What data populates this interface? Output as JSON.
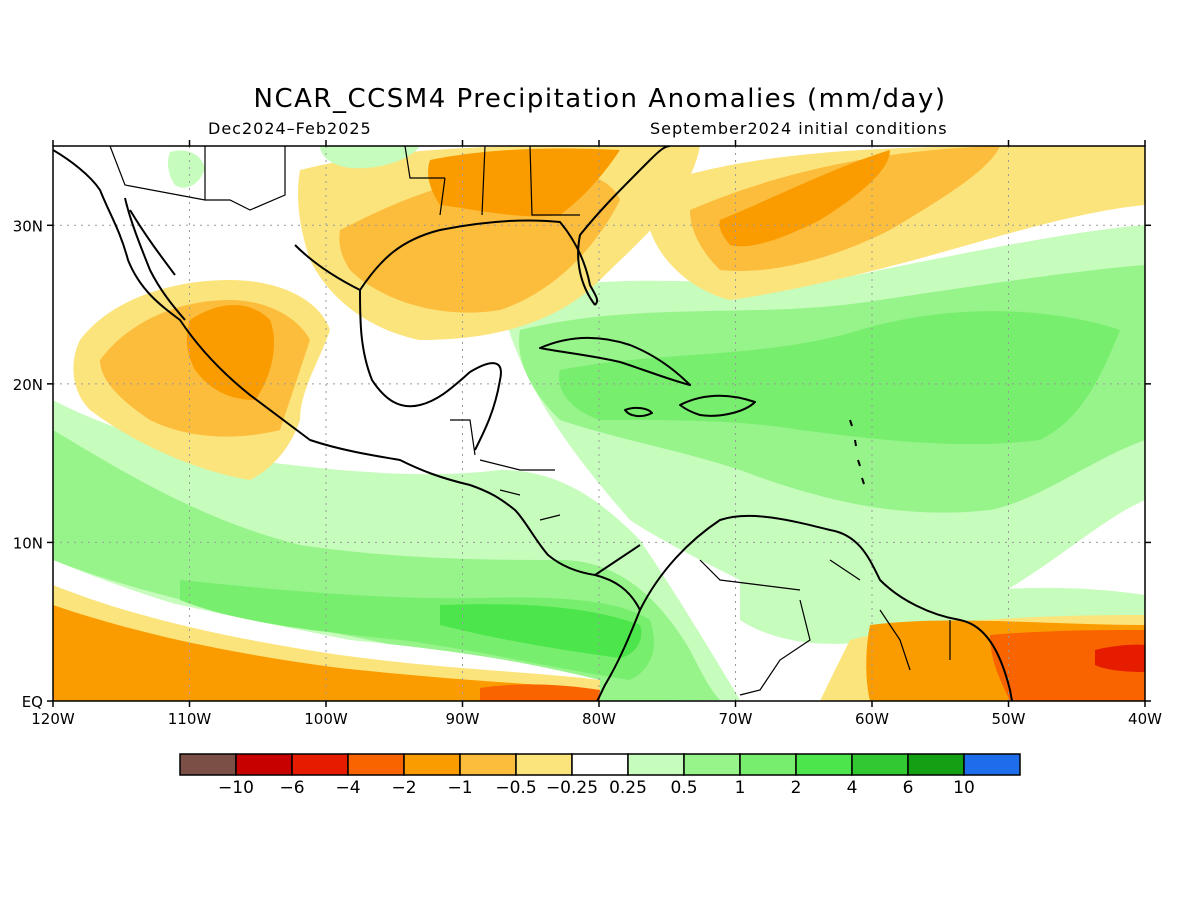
{
  "map": {
    "title": "NCAR_CCSM4 Precipitation Anomalies (mm/day)",
    "period": "Dec2024–Feb2025",
    "initial_conditions": "September2024 initial conditions",
    "lon_ticks": [
      "120W",
      "110W",
      "100W",
      "90W",
      "80W",
      "70W",
      "60W",
      "50W",
      "40W"
    ],
    "lat_ticks": [
      "EQ",
      "10N",
      "20N",
      "30N"
    ],
    "extent": {
      "lon": [
        -120,
        -40
      ],
      "lat": [
        0,
        35
      ]
    }
  },
  "legend": {
    "colors": [
      "#7b4f45",
      "#c70000",
      "#e61c00",
      "#fa6400",
      "#fa9c00",
      "#fcbc3c",
      "#fce47c",
      "#ffffff",
      "#c6fcbc",
      "#96f48a",
      "#78ee6e",
      "#4ce64c",
      "#32c832",
      "#14a014",
      "#1e6eeb"
    ],
    "labels": [
      "−10",
      "−6",
      "−4",
      "−2",
      "−1",
      "−0.5",
      "−0.25",
      "0.25",
      "0.5",
      "1",
      "2",
      "4",
      "6",
      "10"
    ]
  }
}
